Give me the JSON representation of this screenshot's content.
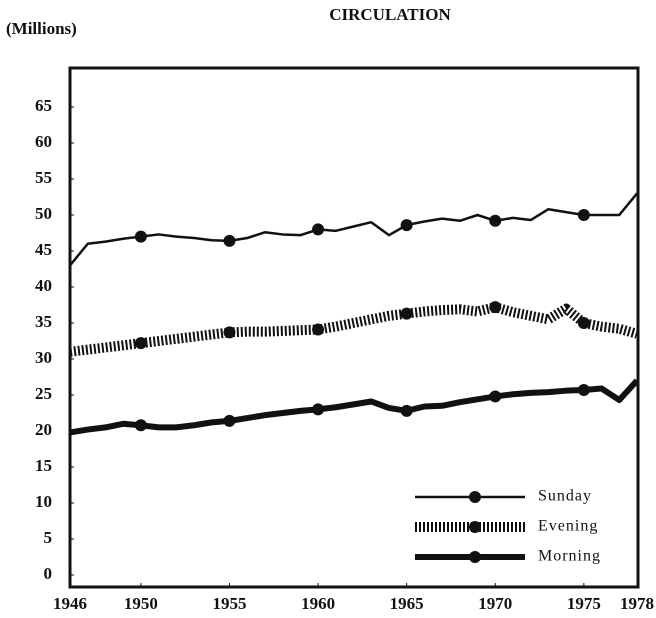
{
  "chart_data": {
    "type": "line",
    "title": "CIRCULATION",
    "y_label": "(Millions)",
    "x": [
      1946,
      1947,
      1948,
      1949,
      1950,
      1951,
      1952,
      1953,
      1954,
      1955,
      1956,
      1957,
      1958,
      1959,
      1960,
      1961,
      1962,
      1963,
      1964,
      1965,
      1966,
      1967,
      1968,
      1969,
      1970,
      1971,
      1972,
      1973,
      1974,
      1975,
      1976,
      1977,
      1978
    ],
    "series": [
      {
        "name": "Sunday",
        "color": "#111111",
        "style": "thin",
        "values": [
          43,
          46,
          46.3,
          46.7,
          47,
          47.3,
          47,
          46.8,
          46.5,
          46.4,
          46.8,
          47.6,
          47.3,
          47.2,
          48,
          47.8,
          48.4,
          49,
          47.2,
          48.6,
          49.1,
          49.5,
          49.2,
          50,
          49.2,
          49.6,
          49.3,
          50.8,
          50.4,
          50,
          50,
          50,
          53
        ]
      },
      {
        "name": "Evening",
        "color": "#111111",
        "style": "dotted",
        "values": [
          31,
          31.3,
          31.6,
          31.9,
          32.2,
          32.5,
          32.8,
          33.1,
          33.4,
          33.7,
          33.8,
          33.8,
          33.9,
          34,
          34.1,
          34.5,
          35,
          35.5,
          36,
          36.3,
          36.6,
          36.8,
          36.9,
          36.6,
          37.2,
          36.5,
          36,
          35.5,
          37,
          35,
          34.5,
          34.2,
          33.5
        ]
      },
      {
        "name": "Morning",
        "color": "#111111",
        "style": "thick",
        "values": [
          19.8,
          20.2,
          20.5,
          21,
          20.8,
          20.5,
          20.5,
          20.8,
          21.2,
          21.4,
          21.8,
          22.2,
          22.5,
          22.8,
          23,
          23.3,
          23.7,
          24.1,
          23.2,
          22.8,
          23.4,
          23.5,
          24,
          24.4,
          24.8,
          25.1,
          25.3,
          25.4,
          25.6,
          25.7,
          25.9,
          24.3,
          27
        ]
      }
    ],
    "xlim": [
      1946,
      1978
    ],
    "xticks": [
      1946,
      1950,
      1955,
      1960,
      1965,
      1970,
      1975,
      1978
    ],
    "ylim": [
      0,
      70
    ],
    "yticks": [
      0,
      5,
      10,
      15,
      20,
      25,
      30,
      35,
      40,
      45,
      50,
      55,
      60,
      65
    ],
    "legend": "lower right"
  }
}
